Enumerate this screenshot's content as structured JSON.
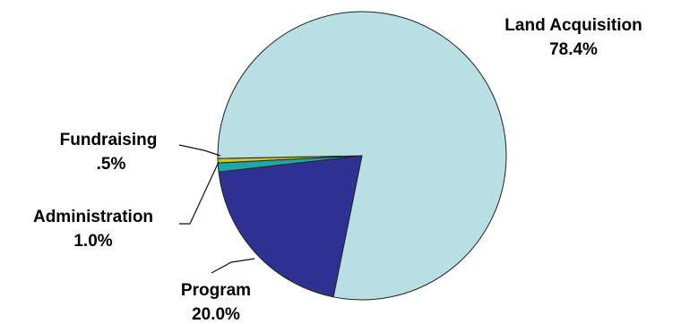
{
  "chart_data": {
    "type": "pie",
    "title": "",
    "slices": [
      {
        "label": "Land Acquisition",
        "value": 78.4,
        "value_label": "78.4%",
        "color": "#b8dfe3"
      },
      {
        "label": "Program",
        "value": 20.0,
        "value_label": "20.0%",
        "color": "#2e3192"
      },
      {
        "label": "Administration",
        "value": 1.0,
        "value_label": "1.0%",
        "color": "#1fa6a6"
      },
      {
        "label": "Fundraising",
        "value": 0.5,
        "value_label": ".5%",
        "color": "#c8c81e"
      }
    ],
    "legend": "none",
    "labels": "outside with leader lines"
  }
}
